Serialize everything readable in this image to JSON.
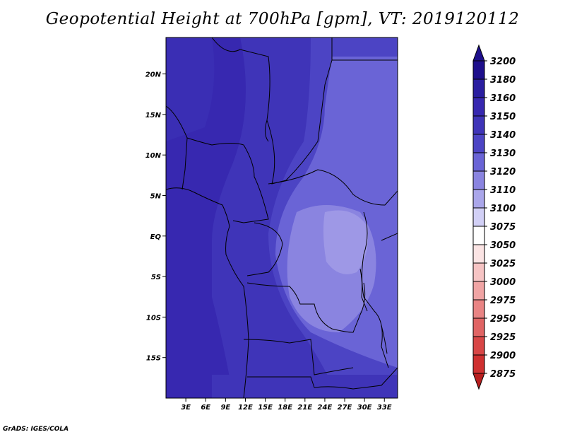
{
  "title": "Geopotential Height at 700hPa [gpm], VT: 2019120112",
  "footer": "GrADS: IGES/COLA",
  "map": {
    "lon_range": [
      0,
      35
    ],
    "lat_range": [
      -20,
      24.5
    ],
    "lat_ticks": [
      {
        "value": 20,
        "label": "20N"
      },
      {
        "value": 15,
        "label": "15N"
      },
      {
        "value": 10,
        "label": "10N"
      },
      {
        "value": 5,
        "label": "5N"
      },
      {
        "value": 0,
        "label": "EQ"
      },
      {
        "value": -5,
        "label": "5S"
      },
      {
        "value": -10,
        "label": "10S"
      },
      {
        "value": -15,
        "label": "15S"
      }
    ],
    "lon_ticks": [
      {
        "value": 3,
        "label": "3E"
      },
      {
        "value": 6,
        "label": "6E"
      },
      {
        "value": 9,
        "label": "9E"
      },
      {
        "value": 12,
        "label": "12E"
      },
      {
        "value": 15,
        "label": "15E"
      },
      {
        "value": 18,
        "label": "18E"
      },
      {
        "value": 21,
        "label": "21E"
      },
      {
        "value": 24,
        "label": "24E"
      },
      {
        "value": 27,
        "label": "27E"
      },
      {
        "value": 30,
        "label": "30E"
      },
      {
        "value": 33,
        "label": "33E"
      }
    ]
  },
  "colorbar": {
    "levels": [
      {
        "label": "3200",
        "color": "#1e0f8c"
      },
      {
        "label": "3180",
        "color": "#2a1ea0"
      },
      {
        "label": "3160",
        "color": "#3728b0"
      },
      {
        "label": "3150",
        "color": "#3f34b8"
      },
      {
        "label": "3140",
        "color": "#4c44c4"
      },
      {
        "label": "3130",
        "color": "#6a64d6"
      },
      {
        "label": "3120",
        "color": "#8a84e0"
      },
      {
        "label": "3110",
        "color": "#aaa6ea"
      },
      {
        "label": "3100",
        "color": "#d2d0f6"
      },
      {
        "label": "3075",
        "color": "#ffffff"
      },
      {
        "label": "3050",
        "color": "#fbe4e4"
      },
      {
        "label": "3025",
        "color": "#f6c4c4"
      },
      {
        "label": "3000",
        "color": "#f0a4a4"
      },
      {
        "label": "2975",
        "color": "#e98484"
      },
      {
        "label": "2950",
        "color": "#e06464"
      },
      {
        "label": "2925",
        "color": "#d84646"
      },
      {
        "label": "2900",
        "color": "#cf3030"
      },
      {
        "label": "2875",
        "color": "#b81e1e"
      }
    ],
    "top_arrow_color": "#1e0f8c",
    "bottom_arrow_color": "#b81e1e"
  }
}
